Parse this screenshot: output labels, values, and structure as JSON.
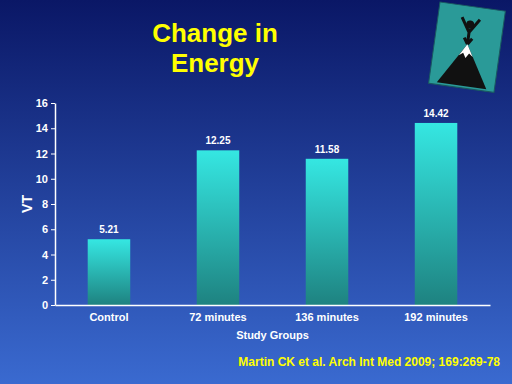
{
  "chart_data": {
    "type": "bar",
    "title": "Change in Energy",
    "y_label": "VT",
    "x_label": "Study Groups",
    "categories": [
      "Control",
      "72 minutes",
      "136 minutes",
      "192 minutes"
    ],
    "values": [
      5.21,
      12.25,
      11.58,
      14.42
    ],
    "color": "#2ec8c4",
    "ylim": [
      0,
      16
    ],
    "yticks": [
      0,
      2,
      4,
      6,
      8,
      10,
      12,
      14,
      16
    ],
    "data_labels": true,
    "annotations": [
      "Martin CK et al. Arch Int Med 2009; 169:269-78"
    ]
  }
}
